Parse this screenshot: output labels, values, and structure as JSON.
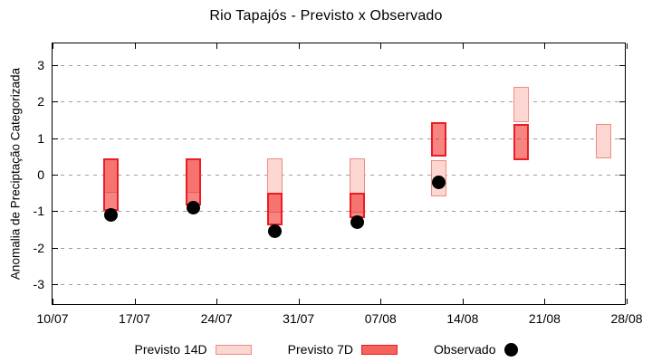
{
  "chart_data": {
    "type": "range-bar",
    "title": "Rio Tapajós - Previsto x Observado",
    "ylabel": "Anomalia de Preciptação Categorizada",
    "xlabel": "",
    "grid": "horizontal dashed at each y tick, mirrored inward ticks on all borders",
    "legend_position": "bottom, outside plot",
    "ylim": [
      -3.6,
      3.6
    ],
    "y_ticks": [
      -3,
      -2,
      -1,
      0,
      1,
      2,
      3
    ],
    "x_domain_days": [
      0,
      49
    ],
    "x_ticks": [
      {
        "day": 0,
        "label": "10/07"
      },
      {
        "day": 7,
        "label": "17/07"
      },
      {
        "day": 14,
        "label": "24/07"
      },
      {
        "day": 21,
        "label": "31/07"
      },
      {
        "day": 28,
        "label": "07/08"
      },
      {
        "day": 35,
        "label": "14/08"
      },
      {
        "day": 42,
        "label": "21/08"
      },
      {
        "day": 49,
        "label": "28/08"
      }
    ],
    "series": [
      {
        "name": "Previsto 14D",
        "type": "range-bar",
        "data": [
          {
            "date": "15/07",
            "day": 5,
            "range": [
              -0.5,
              0.45
            ]
          },
          {
            "date": "22/07",
            "day": 12,
            "range": [
              -0.5,
              0.45
            ]
          },
          {
            "date": "29/07",
            "day": 19,
            "range": [
              -1.05,
              0.45
            ]
          },
          {
            "date": "05/08",
            "day": 26,
            "range": [
              -1.05,
              0.45
            ]
          },
          {
            "date": "12/08",
            "day": 33,
            "range": [
              -0.6,
              0.4
            ]
          },
          {
            "date": "19/08",
            "day": 40,
            "range": [
              1.45,
              2.4
            ]
          },
          {
            "date": "26/08",
            "day": 47,
            "range": [
              0.45,
              1.4
            ]
          }
        ]
      },
      {
        "name": "Previsto 7D",
        "type": "range-bar",
        "data": [
          {
            "date": "15/07",
            "day": 5,
            "range": [
              -1.0,
              0.45
            ]
          },
          {
            "date": "22/07",
            "day": 12,
            "range": [
              -0.85,
              0.45
            ]
          },
          {
            "date": "29/07",
            "day": 19,
            "range": [
              -1.4,
              -0.5
            ]
          },
          {
            "date": "05/08",
            "day": 26,
            "range": [
              -1.2,
              -0.5
            ]
          },
          {
            "date": "12/08",
            "day": 33,
            "range": [
              0.5,
              1.45
            ]
          },
          {
            "date": "19/08",
            "day": 40,
            "range": [
              0.4,
              1.4
            ]
          }
        ]
      },
      {
        "name": "Observado",
        "type": "scatter",
        "data": [
          {
            "date": "15/07",
            "day": 5,
            "value": -1.1
          },
          {
            "date": "22/07",
            "day": 12,
            "value": -0.9
          },
          {
            "date": "29/07",
            "day": 19,
            "value": -1.55
          },
          {
            "date": "05/08",
            "day": 26,
            "value": -1.3
          },
          {
            "date": "12/08",
            "day": 33,
            "value": -0.2
          }
        ]
      }
    ]
  },
  "colors": {
    "previsto_14d_fill": "#fcd6d1",
    "previsto_14d_border": "#ee8c84",
    "previsto_7d_fill": "rgba(240,45,40,0.58)",
    "previsto_7d_border": "#ed1c24",
    "previsto_7d_legend_fill": "#f4635c",
    "observado": "#000000",
    "grid": "#9e9e9e",
    "axis": "#000000"
  }
}
